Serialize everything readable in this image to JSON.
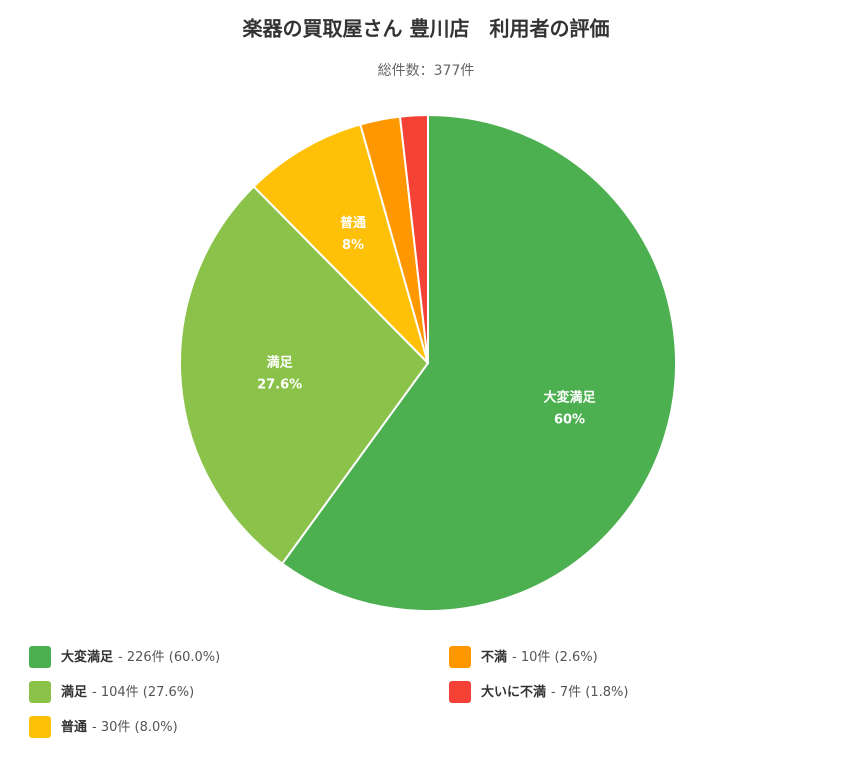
{
  "chart_data": {
    "type": "pie",
    "title": "楽器の買取屋さん 豊川店　利用者の評価",
    "subtitle": "総件数：377件",
    "categories": [
      "大変満足",
      "満足",
      "普通",
      "不満",
      "大いに不満"
    ],
    "values": [
      60,
      27.6,
      8,
      2.6,
      1.8
    ],
    "value_labels": [
      "60%",
      "27.6%",
      "8%",
      null,
      null
    ],
    "colors": [
      "#4caf50",
      "#8bc34a",
      "#ffc107",
      "#ff9800",
      "#f44336"
    ],
    "legend_labels": [
      "- 226件 (60.0%)",
      "- 104件 (27.6%)",
      "- 30件 (8.0%)",
      "- 10件 (2.6%)",
      "- 7件 (1.8%)"
    ]
  }
}
